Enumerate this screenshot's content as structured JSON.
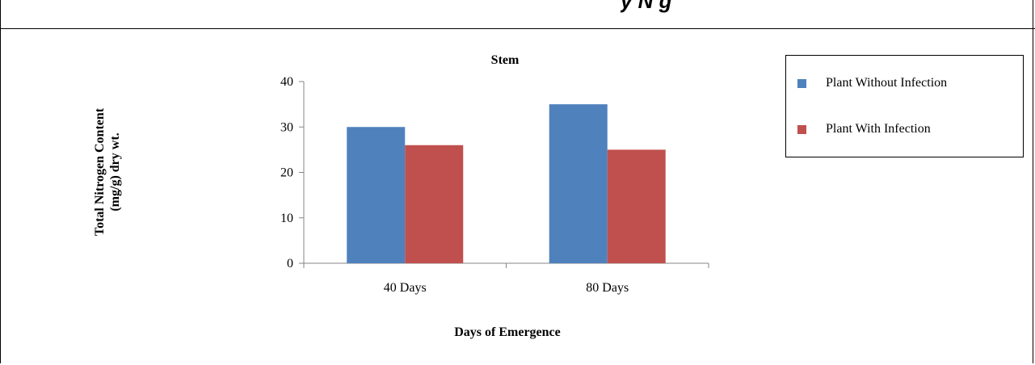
{
  "header": {
    "text": "y   N    g  "
  },
  "colors": {
    "without": "#4f81bd",
    "with": "#c0504d"
  },
  "chart_data": {
    "type": "bar",
    "title": "Stem",
    "xlabel": "Days of Emergence",
    "ylabel_line1": "Total Nitrogen Content",
    "ylabel_line2": "(mg/g) dry wt.",
    "categories": [
      "40 Days",
      "80 Days"
    ],
    "series": [
      {
        "name": "Plant Without Infection",
        "values": [
          30,
          35
        ]
      },
      {
        "name": "Plant With Infection",
        "values": [
          26,
          25
        ]
      }
    ],
    "ylim": [
      0,
      40
    ],
    "yticks": [
      0,
      10,
      20,
      30,
      40
    ],
    "grid": false,
    "legend_position": "right"
  }
}
